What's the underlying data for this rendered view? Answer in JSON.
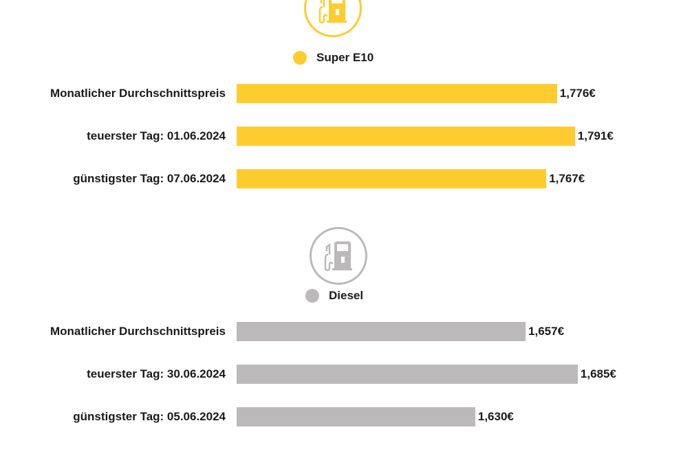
{
  "chart_data": {
    "type": "bar",
    "orientation": "horizontal",
    "groups": [
      {
        "name": "Super E10",
        "color": "#fecc2f",
        "icon": "fuel-pump-icon",
        "xlim": [
          1.507,
          1.82
        ],
        "categories": [
          "Monatlicher Durchschnittspreis",
          "teuerster Tag: 01.06.2024",
          "günstigster Tag: 07.06.2024"
        ],
        "values": [
          1.776,
          1.791,
          1.767
        ],
        "labels": [
          "1,776€",
          "1,791€",
          "1,767€"
        ]
      },
      {
        "name": "Diesel",
        "color": "#bbb9ba",
        "icon": "fuel-pump-icon",
        "xlim": [
          1.502,
          1.702
        ],
        "categories": [
          "Monatlicher Durchschnittspreis",
          "teuerster Tag: 30.06.2024",
          "günstigster Tag: 05.06.2024"
        ],
        "values": [
          1.657,
          1.685,
          1.63
        ],
        "labels": [
          "1,657€",
          "1,685€",
          "1,630€"
        ]
      }
    ]
  }
}
